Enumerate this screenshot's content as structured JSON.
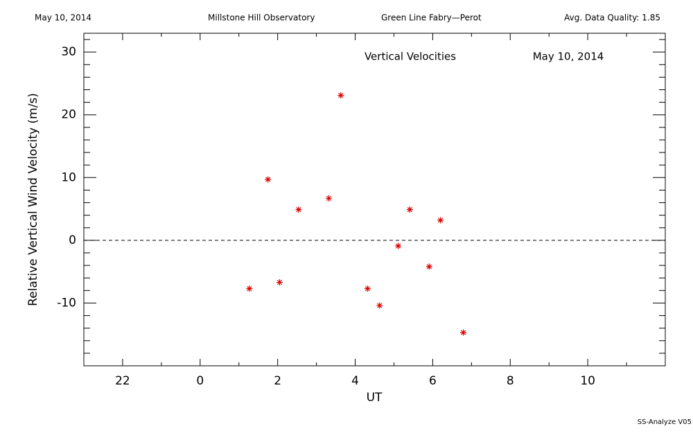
{
  "header": {
    "date": "May 10, 2014",
    "observatory": "Millstone Hill Observatory",
    "instrument": "Green Line Fabry—Perot",
    "quality": "Avg. Data Quality: 1.85"
  },
  "footer": "SS-Analyze V05",
  "chart_data": {
    "type": "scatter",
    "title": "Vertical Velocities",
    "subtitle": "May 10, 2014",
    "x_label": "UT",
    "y_label": "Relative Vertical Wind Velocity (m/s)",
    "x": [
      1.27,
      1.75,
      2.05,
      2.54,
      3.32,
      3.63,
      4.32,
      4.63,
      5.11,
      5.41,
      5.91,
      6.2,
      6.79
    ],
    "values": [
      -7.7,
      9.7,
      -6.7,
      4.9,
      6.7,
      23.1,
      -7.7,
      -10.4,
      -0.9,
      4.9,
      -4.2,
      3.2,
      -14.7
    ],
    "color": "#dd0000",
    "xlim": [
      -3,
      12
    ],
    "xticks": [
      {
        "value": -2,
        "label": "22"
      },
      0,
      2,
      4,
      6,
      8,
      10
    ],
    "xminorticks": [
      -1,
      1,
      3,
      5,
      7,
      9,
      11
    ],
    "ylim": [
      -20,
      33
    ],
    "yticks": [
      -10,
      0,
      10,
      20,
      30
    ],
    "yminorticks": [
      -18,
      -16,
      -14,
      -12,
      -8,
      -6,
      -4,
      -2,
      2,
      4,
      6,
      8,
      12,
      14,
      16,
      18,
      22,
      24,
      26,
      28,
      32
    ],
    "hline": 0
  }
}
